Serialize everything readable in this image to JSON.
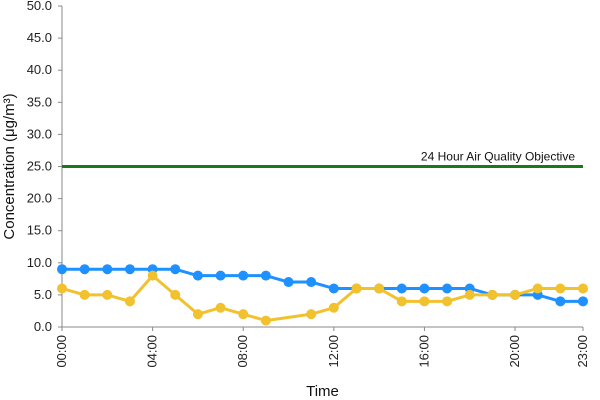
{
  "chart_data": {
    "type": "line",
    "xlabel": "Time",
    "ylabel": "Concentration (μg/m³)",
    "x": [
      0,
      1,
      2,
      3,
      4,
      5,
      6,
      7,
      8,
      9,
      10,
      11,
      12,
      13,
      14,
      15,
      16,
      17,
      18,
      19,
      20,
      21,
      22,
      23
    ],
    "x_tick_labels": [
      {
        "x": 0,
        "label": "00:00"
      },
      {
        "x": 4,
        "label": "04:00"
      },
      {
        "x": 8,
        "label": "08:00"
      },
      {
        "x": 12,
        "label": "12:00"
      },
      {
        "x": 16,
        "label": "16:00"
      },
      {
        "x": 20,
        "label": "20:00"
      },
      {
        "x": 23,
        "label": "23:00"
      }
    ],
    "xlim": [
      0,
      23
    ],
    "ylim": [
      0,
      50
    ],
    "y_ticks": [
      "0.0",
      "5.0",
      "10.0",
      "15.0",
      "20.0",
      "25.0",
      "30.0",
      "35.0",
      "40.0",
      "45.0",
      "50.0"
    ],
    "grid": false,
    "series": [
      {
        "color": "#1e90ff",
        "values": [
          9,
          9,
          9,
          9,
          9,
          9,
          8,
          8,
          8,
          8,
          7,
          7,
          6,
          6,
          6,
          6,
          6,
          6,
          6,
          5,
          5,
          5,
          4,
          4
        ]
      },
      {
        "color": "#f2c12e",
        "values": [
          6,
          5,
          5,
          4,
          8,
          5,
          2,
          3,
          2,
          1,
          null,
          2,
          3,
          6,
          6,
          4,
          4,
          4,
          5,
          5,
          5,
          6,
          6,
          6
        ]
      }
    ],
    "reference_line": {
      "label": "24 Hour Air Quality Objective",
      "value": 25,
      "color": "#1a7a1a"
    }
  }
}
